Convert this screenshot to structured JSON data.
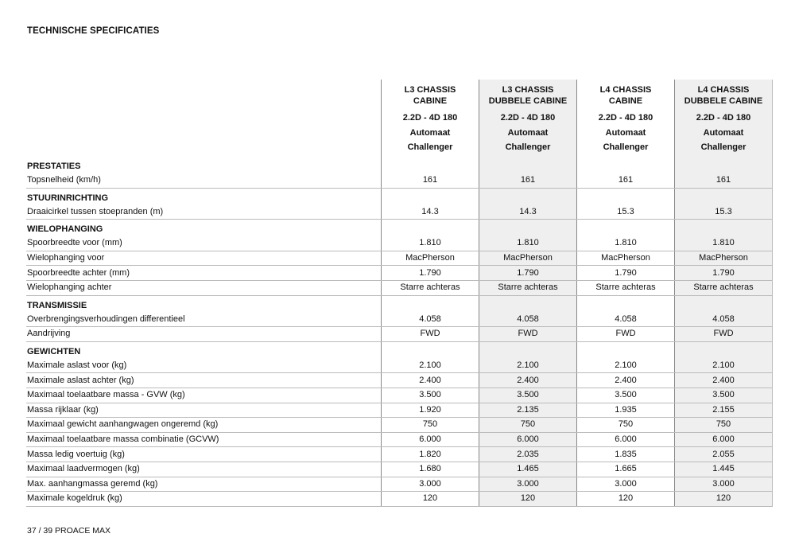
{
  "title": "TECHNISCHE SPECIFICATIES",
  "footer": "37 / 39  PROACE MAX",
  "columns": [
    {
      "model": "L3 CHASSIS",
      "sub": "CABINE",
      "engine": "2.2D - 4D 180",
      "trans": "Automaat",
      "grade": "Challenger"
    },
    {
      "model": "L3 CHASSIS",
      "sub": "DUBBELE CABINE",
      "engine": "2.2D - 4D 180",
      "trans": "Automaat",
      "grade": "Challenger"
    },
    {
      "model": "L4 CHASSIS",
      "sub": "CABINE",
      "engine": "2.2D - 4D 180",
      "trans": "Automaat",
      "grade": "Challenger"
    },
    {
      "model": "L4 CHASSIS",
      "sub": "DUBBELE CABINE",
      "engine": "2.2D - 4D 180",
      "trans": "Automaat",
      "grade": "Challenger"
    }
  ],
  "sections": [
    {
      "name": "PRESTATIES",
      "rows": [
        {
          "label": "Topsnelheid (km/h)",
          "values": [
            "161",
            "161",
            "161",
            "161"
          ]
        }
      ]
    },
    {
      "name": "STUURINRICHTING",
      "rows": [
        {
          "label": "Draaicirkel tussen stoepranden (m)",
          "values": [
            "14.3",
            "14.3",
            "15.3",
            "15.3"
          ]
        }
      ]
    },
    {
      "name": "WIELOPHANGING",
      "rows": [
        {
          "label": "Spoorbreedte voor (mm)",
          "values": [
            "1.810",
            "1.810",
            "1.810",
            "1.810"
          ]
        },
        {
          "label": "Wielophanging voor",
          "values": [
            "MacPherson",
            "MacPherson",
            "MacPherson",
            "MacPherson"
          ]
        },
        {
          "label": "Spoorbreedte achter (mm)",
          "values": [
            "1.790",
            "1.790",
            "1.790",
            "1.790"
          ]
        },
        {
          "label": "Wielophanging achter",
          "values": [
            "Starre achteras",
            "Starre achteras",
            "Starre achteras",
            "Starre achteras"
          ]
        }
      ]
    },
    {
      "name": "TRANSMISSIE",
      "rows": [
        {
          "label": "Overbrengingsverhoudingen differentieel",
          "values": [
            "4.058",
            "4.058",
            "4.058",
            "4.058"
          ]
        },
        {
          "label": "Aandrijving",
          "values": [
            "FWD",
            "FWD",
            "FWD",
            "FWD"
          ]
        }
      ]
    },
    {
      "name": "GEWICHTEN",
      "rows": [
        {
          "label": "Maximale aslast voor (kg)",
          "values": [
            "2.100",
            "2.100",
            "2.100",
            "2.100"
          ]
        },
        {
          "label": "Maximale aslast achter (kg)",
          "values": [
            "2.400",
            "2.400",
            "2.400",
            "2.400"
          ]
        },
        {
          "label": "Maximaal toelaatbare massa - GVW (kg)",
          "values": [
            "3.500",
            "3.500",
            "3.500",
            "3.500"
          ]
        },
        {
          "label": "Massa rijklaar (kg)",
          "values": [
            "1.920",
            "2.135",
            "1.935",
            "2.155"
          ]
        },
        {
          "label": "Maximaal gewicht aanhangwagen ongeremd (kg)",
          "values": [
            "750",
            "750",
            "750",
            "750"
          ]
        },
        {
          "label": "Maximaal toelaatbare massa combinatie (GCVW)",
          "values": [
            "6.000",
            "6.000",
            "6.000",
            "6.000"
          ]
        },
        {
          "label": "Massa ledig voertuig (kg)",
          "values": [
            "1.820",
            "2.035",
            "1.835",
            "2.055"
          ]
        },
        {
          "label": "Maximaal laadvermogen (kg)",
          "values": [
            "1.680",
            "1.465",
            "1.665",
            "1.445"
          ]
        },
        {
          "label": "Max. aanhangmassa geremd (kg)",
          "values": [
            "3.000",
            "3.000",
            "3.000",
            "3.000"
          ]
        },
        {
          "label": "Maximale kogeldruk (kg)",
          "values": [
            "120",
            "120",
            "120",
            "120"
          ]
        }
      ]
    }
  ]
}
